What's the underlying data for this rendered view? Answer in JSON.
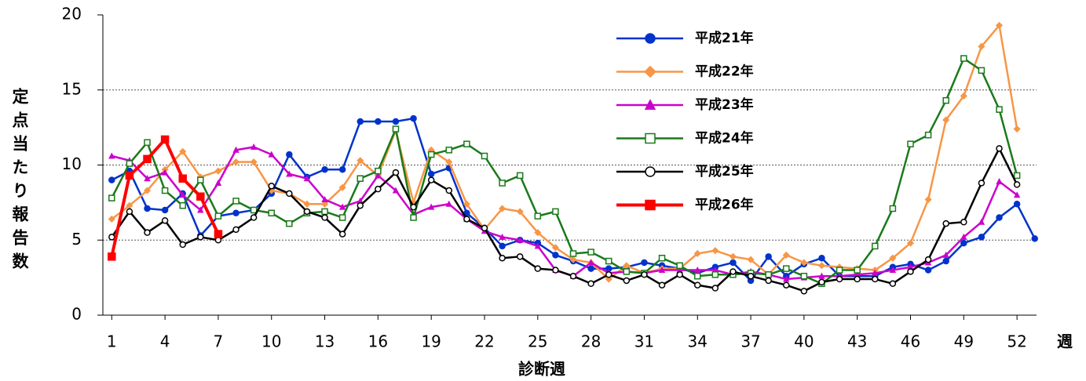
{
  "chart_data": {
    "type": "line",
    "ylabel": "定点当たり報告数",
    "xlabel": "診断週",
    "xunit": "週",
    "x": [
      1,
      2,
      3,
      4,
      5,
      6,
      7,
      8,
      9,
      10,
      11,
      12,
      13,
      14,
      15,
      16,
      17,
      18,
      19,
      20,
      21,
      22,
      23,
      24,
      25,
      26,
      27,
      28,
      29,
      30,
      31,
      32,
      33,
      34,
      35,
      36,
      37,
      38,
      39,
      40,
      41,
      42,
      43,
      44,
      45,
      46,
      47,
      48,
      49,
      50,
      51,
      52,
      53
    ],
    "xlim": [
      0.5,
      53.1
    ],
    "xticks": [
      1,
      4,
      7,
      10,
      13,
      16,
      19,
      22,
      25,
      28,
      31,
      34,
      37,
      40,
      43,
      46,
      49,
      52
    ],
    "ylim": [
      0,
      20
    ],
    "yticks": [
      0,
      5,
      10,
      15,
      20
    ],
    "grid": true,
    "series": [
      {
        "name": "平成21年",
        "color": "#0033cc",
        "marker": "circle-filled",
        "linewidth": 2.5,
        "values": [
          9.0,
          9.6,
          7.1,
          7.0,
          8.1,
          5.3,
          6.6,
          6.8,
          7.0,
          8.1,
          10.7,
          9.2,
          9.7,
          9.7,
          12.9,
          12.9,
          12.9,
          13.1,
          9.4,
          9.8,
          6.8,
          5.8,
          4.6,
          5.0,
          4.8,
          4.0,
          3.6,
          3.1,
          3.1,
          3.2,
          3.5,
          3.3,
          3.1,
          2.8,
          3.2,
          3.5,
          2.3,
          3.9,
          2.6,
          3.4,
          3.8,
          2.6,
          2.6,
          2.6,
          3.2,
          3.4,
          3.0,
          3.6,
          4.8,
          5.2,
          6.5,
          7.4,
          5.1
        ]
      },
      {
        "name": "平成22年",
        "color": "#f79646",
        "marker": "diamond",
        "linewidth": 2.5,
        "values": [
          6.4,
          7.3,
          8.3,
          9.7,
          10.9,
          9.2,
          9.6,
          10.2,
          10.2,
          8.3,
          8.1,
          7.4,
          7.4,
          8.5,
          10.3,
          9.3,
          12.3,
          7.5,
          11.0,
          10.2,
          7.4,
          5.7,
          7.1,
          6.9,
          5.5,
          4.5,
          3.7,
          3.5,
          2.4,
          3.3,
          2.8,
          3.1,
          3.1,
          4.1,
          4.3,
          3.9,
          3.7,
          2.7,
          4.0,
          3.5,
          3.3,
          3.2,
          3.1,
          3.0,
          3.8,
          4.8,
          7.7,
          13.0,
          14.6,
          17.9,
          19.3,
          12.4,
          null
        ]
      },
      {
        "name": "平成23年",
        "color": "#cc00cc",
        "marker": "triangle",
        "linewidth": 2.5,
        "values": [
          10.6,
          10.3,
          9.1,
          9.5,
          8.0,
          7.0,
          8.8,
          11.0,
          11.2,
          10.7,
          9.4,
          9.1,
          7.7,
          7.2,
          7.6,
          9.3,
          8.3,
          6.7,
          7.2,
          7.4,
          6.4,
          5.6,
          5.2,
          5.0,
          4.6,
          3.0,
          2.6,
          3.5,
          2.8,
          2.9,
          2.8,
          3.0,
          3.0,
          3.0,
          3.0,
          2.7,
          2.9,
          2.7,
          2.4,
          2.5,
          2.6,
          2.6,
          2.7,
          2.8,
          3.0,
          3.2,
          3.5,
          4.0,
          5.2,
          6.2,
          8.9,
          8.0,
          null
        ]
      },
      {
        "name": "平成24年",
        "color": "#1a7a1a",
        "marker": "square-open",
        "linewidth": 2.5,
        "values": [
          7.8,
          10.1,
          11.5,
          8.3,
          7.3,
          9.0,
          6.6,
          7.6,
          7.0,
          6.8,
          6.1,
          6.8,
          6.9,
          6.5,
          9.1,
          9.6,
          12.4,
          6.5,
          10.7,
          11.0,
          11.4,
          10.6,
          8.8,
          9.3,
          6.6,
          6.9,
          4.1,
          4.2,
          3.6,
          2.9,
          2.8,
          3.8,
          3.3,
          2.6,
          2.7,
          2.7,
          2.8,
          2.7,
          3.1,
          2.6,
          2.1,
          3.0,
          3.0,
          4.6,
          7.1,
          11.4,
          12.0,
          14.3,
          17.1,
          16.3,
          13.7,
          9.3,
          null
        ]
      },
      {
        "name": "平成25年",
        "color": "#000000",
        "marker": "circle-open",
        "linewidth": 2.5,
        "values": [
          5.2,
          6.9,
          5.5,
          6.3,
          4.7,
          5.2,
          5.0,
          5.7,
          6.5,
          8.6,
          8.1,
          6.9,
          6.5,
          5.4,
          7.3,
          8.4,
          9.5,
          7.2,
          9.0,
          8.3,
          6.4,
          5.8,
          3.8,
          3.9,
          3.1,
          3.0,
          2.6,
          2.1,
          2.7,
          2.3,
          2.7,
          2.0,
          2.7,
          2.0,
          1.8,
          2.9,
          2.6,
          2.3,
          2.0,
          1.6,
          2.2,
          2.4,
          2.4,
          2.4,
          2.1,
          2.9,
          3.7,
          6.1,
          6.2,
          8.8,
          11.1,
          8.7,
          null
        ]
      },
      {
        "name": "平成26年",
        "color": "#ff0000",
        "marker": "square-filled",
        "linewidth": 4,
        "values": [
          3.9,
          9.3,
          10.4,
          11.7,
          9.1,
          7.9,
          5.4,
          null,
          null,
          null,
          null,
          null,
          null,
          null,
          null,
          null,
          null,
          null,
          null,
          null,
          null,
          null,
          null,
          null,
          null,
          null,
          null,
          null,
          null,
          null,
          null,
          null,
          null,
          null,
          null,
          null,
          null,
          null,
          null,
          null,
          null,
          null,
          null,
          null,
          null,
          null,
          null,
          null,
          null,
          null,
          null,
          null,
          null
        ]
      }
    ]
  }
}
